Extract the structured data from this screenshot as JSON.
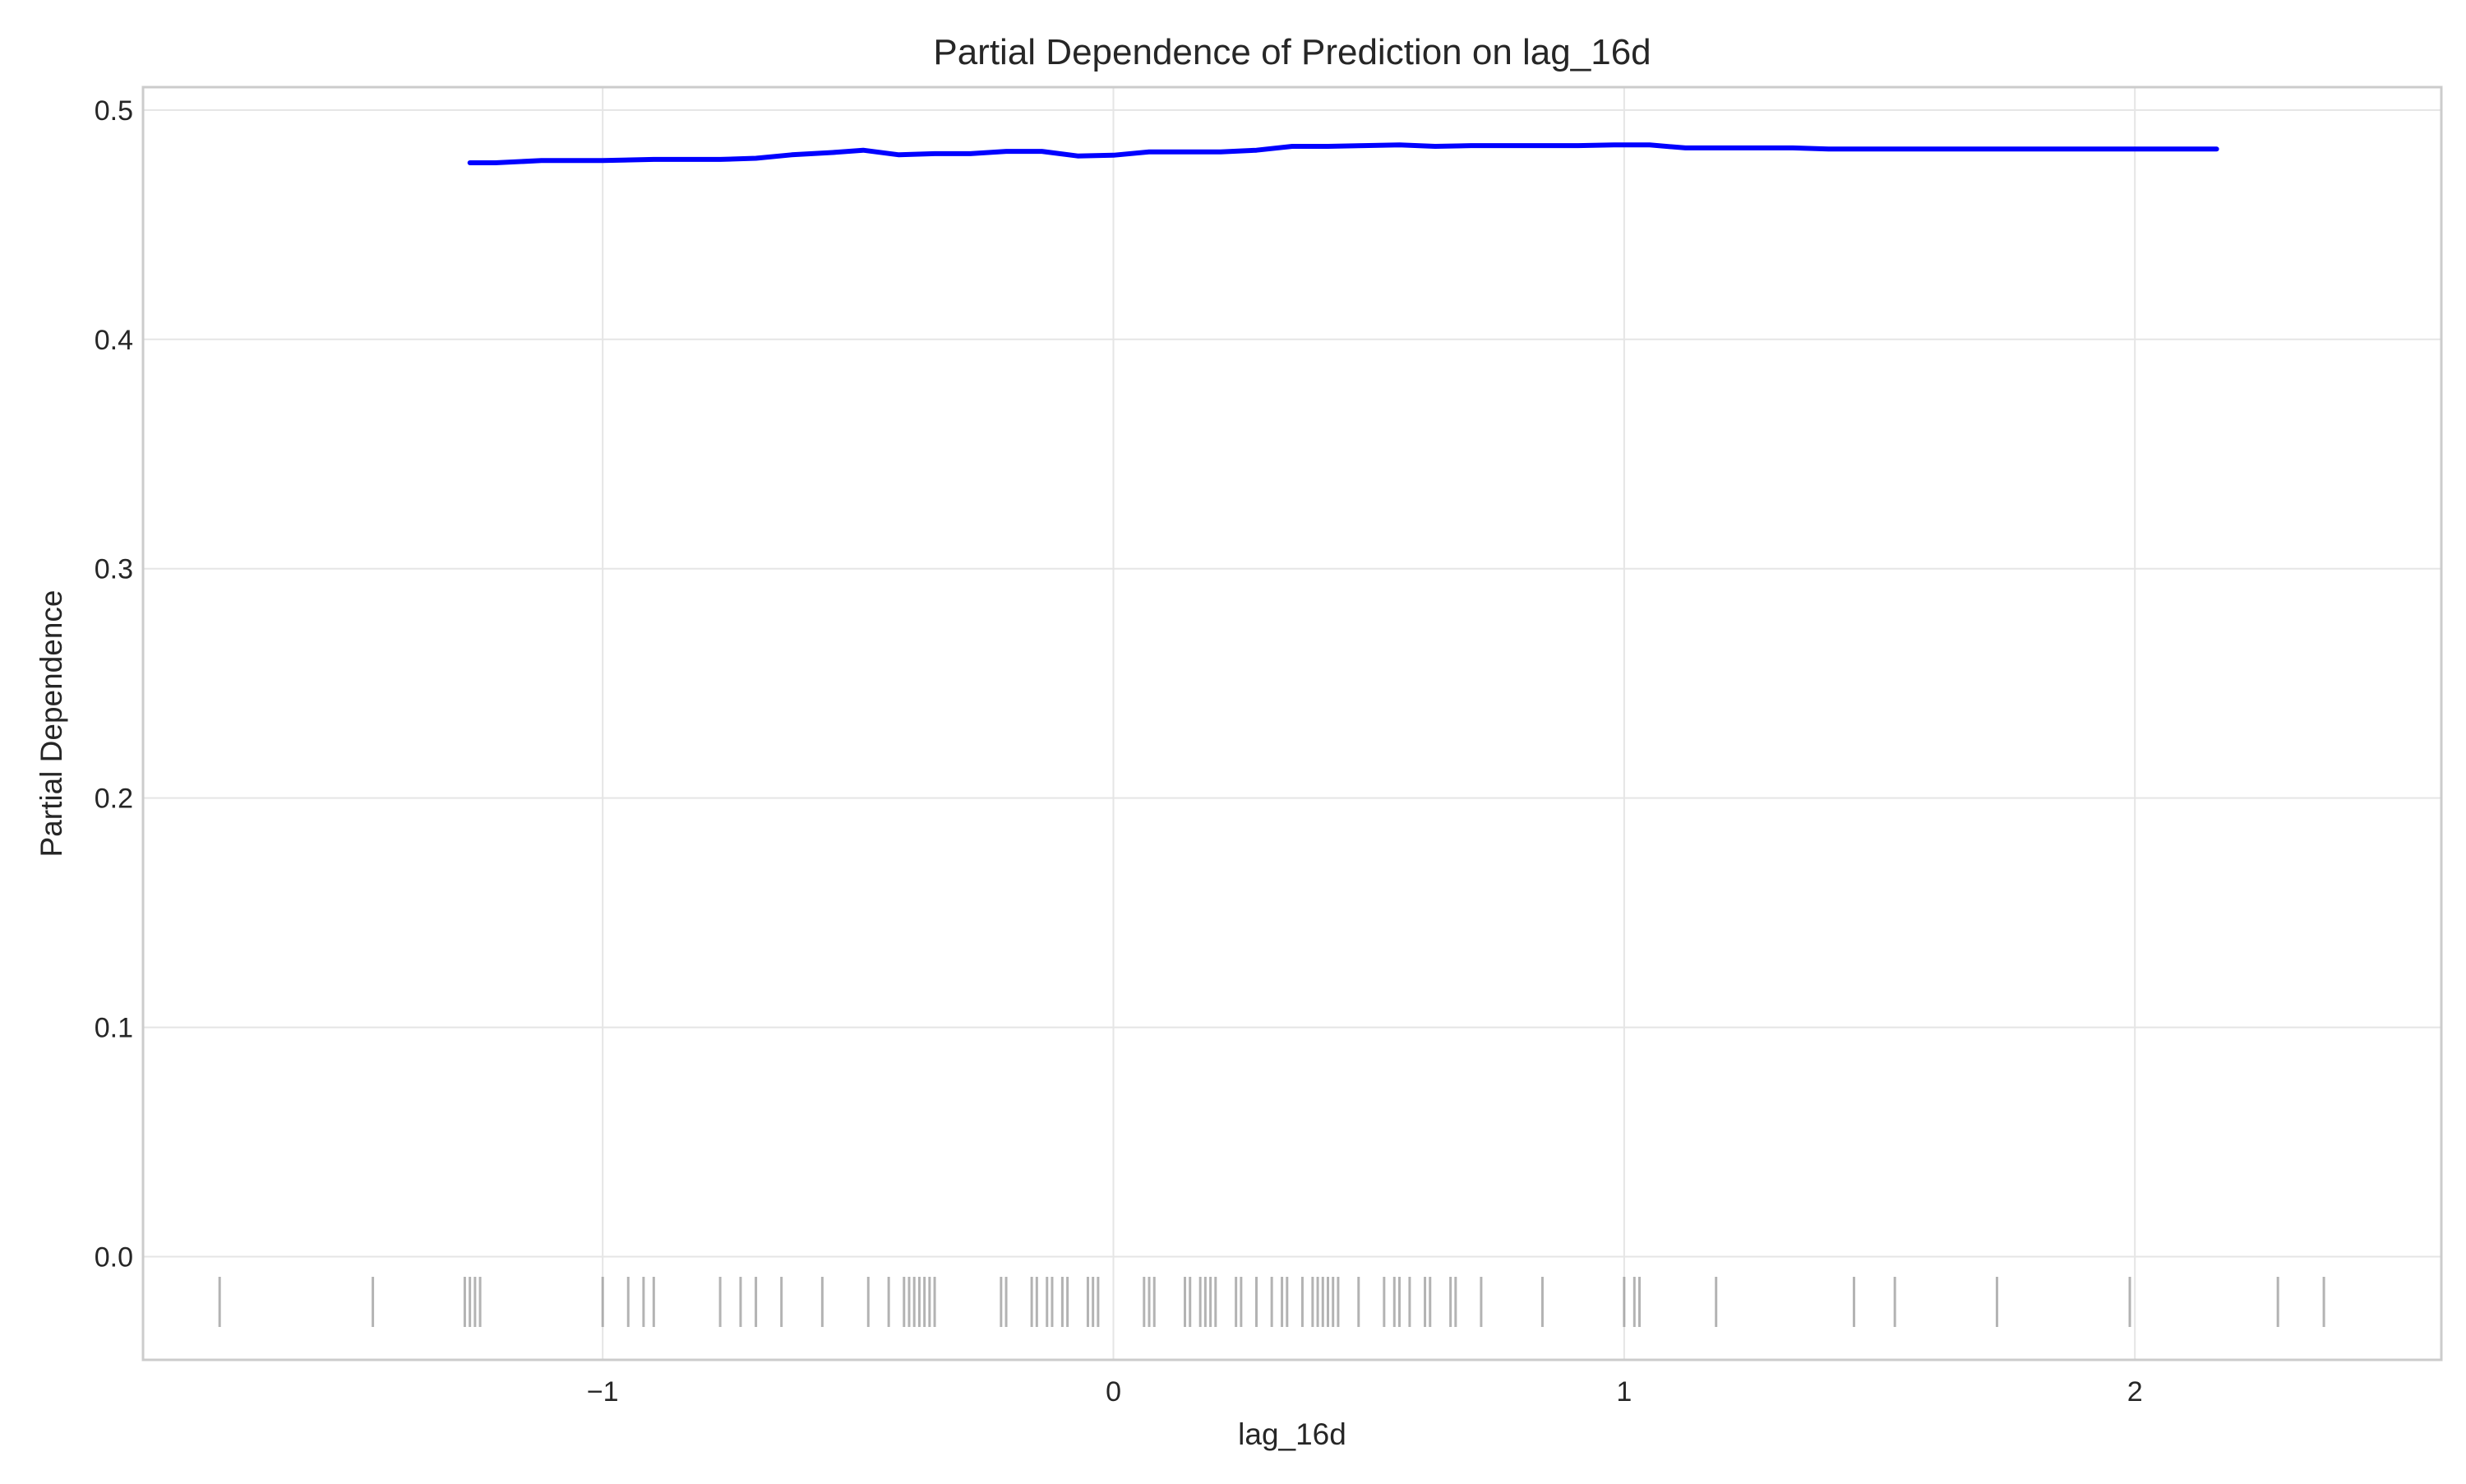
{
  "chart_data": {
    "type": "line",
    "title": "Partial Dependence of Prediction on lag_16d",
    "xlabel": "lag_16d",
    "ylabel": "Partial Dependence",
    "xlim": [
      -1.9,
      2.6
    ],
    "ylim": [
      -0.045,
      0.51
    ],
    "x_ticks": [
      -1,
      0,
      1,
      2
    ],
    "x_tick_labels": [
      "−1",
      "0",
      "1",
      "2"
    ],
    "y_ticks": [
      0.0,
      0.1,
      0.2,
      0.3,
      0.4,
      0.5
    ],
    "y_tick_labels": [
      "0.0",
      "0.1",
      "0.2",
      "0.3",
      "0.4",
      "0.5"
    ],
    "grid": true,
    "line_color": "#0000ff",
    "rug_color": "#a0a0a0",
    "series": [
      {
        "x": [
          -1.26,
          -1.21,
          -1.12,
          -1.0,
          -0.9,
          -0.77,
          -0.7,
          -0.63,
          -0.55,
          -0.49,
          -0.42,
          -0.35,
          -0.28,
          -0.21,
          -0.14,
          -0.07,
          0.0,
          0.07,
          0.14,
          0.21,
          0.28,
          0.35,
          0.42,
          0.49,
          0.56,
          0.63,
          0.7,
          0.84,
          0.91,
          0.98,
          1.05,
          1.12,
          1.33,
          1.4,
          2.16
        ],
        "y": [
          0.477,
          0.477,
          0.478,
          0.478,
          0.4785,
          0.4785,
          0.479,
          0.4805,
          0.4815,
          0.4825,
          0.4805,
          0.481,
          0.481,
          0.482,
          0.482,
          0.48,
          0.4803,
          0.4818,
          0.4818,
          0.4818,
          0.4825,
          0.4842,
          0.4842,
          0.4845,
          0.4848,
          0.4842,
          0.4845,
          0.4845,
          0.4845,
          0.4848,
          0.4848,
          0.4835,
          0.4835,
          0.483,
          0.483
        ]
      }
    ],
    "rug": [
      -1.75,
      -1.45,
      -1.27,
      -1.26,
      -1.25,
      -1.24,
      -1.0,
      -0.95,
      -0.92,
      -0.9,
      -0.77,
      -0.73,
      -0.7,
      -0.65,
      -0.57,
      -0.48,
      -0.44,
      -0.41,
      -0.4,
      -0.39,
      -0.38,
      -0.37,
      -0.36,
      -0.35,
      -0.22,
      -0.21,
      -0.16,
      -0.15,
      -0.13,
      -0.12,
      -0.1,
      -0.09,
      -0.05,
      -0.04,
      -0.03,
      0.06,
      0.07,
      0.08,
      0.14,
      0.15,
      0.17,
      0.18,
      0.19,
      0.2,
      0.24,
      0.25,
      0.28,
      0.31,
      0.33,
      0.34,
      0.37,
      0.39,
      0.4,
      0.41,
      0.42,
      0.43,
      0.44,
      0.48,
      0.53,
      0.55,
      0.56,
      0.58,
      0.61,
      0.62,
      0.66,
      0.67,
      0.72,
      0.84,
      1.0,
      1.02,
      1.03,
      1.18,
      1.45,
      1.53,
      1.73,
      1.99,
      2.28,
      2.37
    ]
  }
}
